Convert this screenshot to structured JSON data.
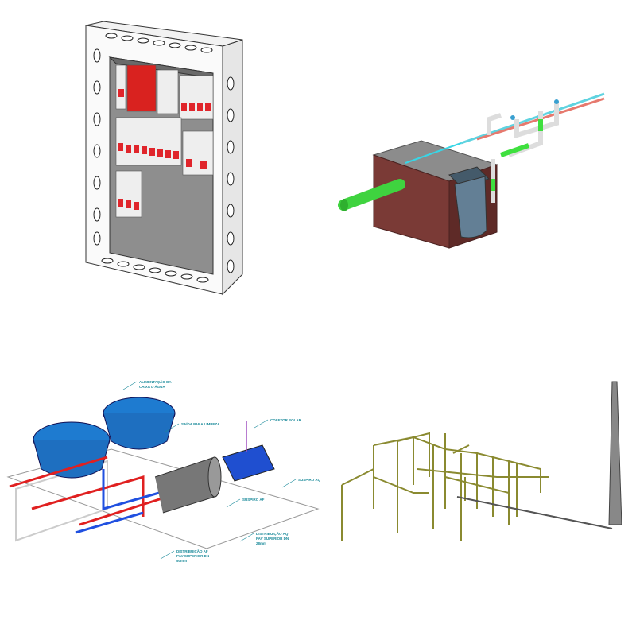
{
  "callouts": [
    {
      "lines": [
        "ALIMENTAÇÃO DA",
        "CAIXA D'ÁGUA"
      ]
    },
    {
      "lines": [
        "SAÍDA PARA LIMPEZA"
      ]
    },
    {
      "lines": [
        "COLETOR SOLAR"
      ]
    },
    {
      "lines": [
        "SUSPIRO AQ"
      ]
    },
    {
      "lines": [
        "SUSPIRO AF"
      ]
    },
    {
      "lines": [
        "DISTRIBUIÇÃO AQ",
        "PAV SUPERIOR DN",
        "28mm"
      ]
    },
    {
      "lines": [
        "DISTRIBUIÇÃO AF",
        "PAV SUPERIOR DN",
        "50mm"
      ]
    }
  ]
}
